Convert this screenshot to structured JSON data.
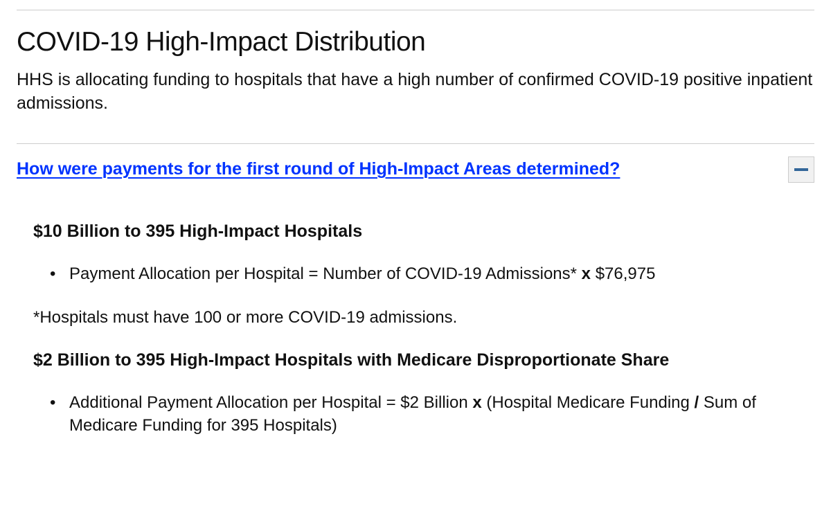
{
  "page": {
    "title": "COVID-19 High-Impact Distribution",
    "intro": "HHS is allocating funding to hospitals that have a high number of confirmed COVID-19 positive inpatient admissions."
  },
  "accordion": {
    "title": "How were payments for the first round of High-Impact Areas determined?",
    "expanded": true
  },
  "section1": {
    "heading": "$10 Billion to 395 High-Impact Hospitals",
    "bullet_prefix": "Payment Allocation per Hospital = Number of COVID-19 Admissions* ",
    "bullet_x": "x",
    "bullet_suffix": " $76,975",
    "footnote": "*Hospitals must have 100 or more COVID-19 admissions."
  },
  "section2": {
    "heading": "$2 Billion to 395 High-Impact Hospitals with Medicare Disproportionate Share",
    "bullet_prefix": "Additional Payment Allocation per Hospital = $2 Billion ",
    "bullet_x": "x",
    "bullet_mid": " (Hospital Medicare Funding ",
    "bullet_slash": "/",
    "bullet_suffix": " Sum of Medicare Funding for 395 Hospitals)"
  },
  "colors": {
    "link": "#0033ff",
    "rule": "#cccccc",
    "toggle_bg": "#f1f1f1",
    "toggle_bar": "#336699",
    "text": "#111111"
  }
}
